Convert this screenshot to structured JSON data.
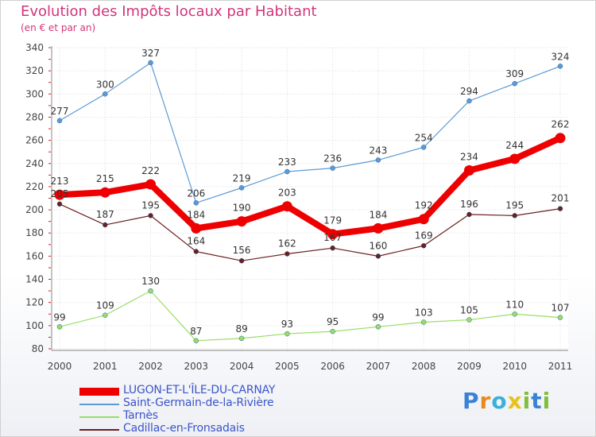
{
  "header": {
    "title": "Evolution des Impôts locaux par Habitant",
    "subtitle": "(en € et par an)"
  },
  "brand": {
    "letters": [
      "P",
      "r",
      "o",
      "x",
      "i",
      "t",
      "i"
    ],
    "colors": [
      "#3b82d6",
      "#e88a1a",
      "#3bb0d9",
      "#e8c21a",
      "#7fbf3a",
      "#3b82d6",
      "#7fbf3a"
    ]
  },
  "chart_data": {
    "type": "line",
    "title": "Evolution des Impôts locaux par Habitant",
    "subtitle": "(en € et par an)",
    "xlabel": "",
    "ylabel": "",
    "x": [
      "2000",
      "2001",
      "2002",
      "2003",
      "2004",
      "2005",
      "2006",
      "2007",
      "2008",
      "2009",
      "2010",
      "2011"
    ],
    "ylim": [
      80,
      340
    ],
    "yticks": [
      "80",
      "100",
      "120",
      "140",
      "160",
      "180",
      "200",
      "220",
      "240",
      "260",
      "280",
      "300",
      "320",
      "340"
    ],
    "grid": true,
    "legend_position": "bottom-left",
    "series": [
      {
        "name": "LUGON-ET-L'ÎLE-DU-CARNAY",
        "color": "#ee0000",
        "values": [
          213,
          215,
          222,
          184,
          190,
          203,
          179,
          184,
          192,
          234,
          244,
          262
        ],
        "labels": [
          "213",
          "215",
          "222",
          "184",
          "190",
          "203",
          "179",
          "184",
          "192",
          "234",
          "244",
          "262"
        ]
      },
      {
        "name": "Saint-Germain-de-la-Rivière",
        "color": "#5b9bd5",
        "values": [
          277,
          300,
          327,
          206,
          219,
          233,
          236,
          243,
          254,
          294,
          309,
          324
        ],
        "labels": [
          "277",
          "300",
          "327",
          "206",
          "219",
          "233",
          "236",
          "243",
          "254",
          "294",
          "309",
          "324"
        ]
      },
      {
        "name": "Tarnès",
        "color": "#99dd66",
        "values": [
          99,
          109,
          130,
          87,
          89,
          93,
          95,
          99,
          103,
          105,
          110,
          107
        ],
        "labels": [
          "99",
          "109",
          "130",
          "87",
          "89",
          "93",
          "95",
          "99",
          "103",
          "105",
          "110",
          "107"
        ]
      },
      {
        "name": "Cadillac-en-Fronsadais",
        "color": "#6b1f1f",
        "values": [
          205,
          187,
          195,
          164,
          156,
          162,
          167,
          160,
          169,
          196,
          195,
          201
        ],
        "labels": [
          "205",
          "187",
          "195",
          "164",
          "156",
          "162",
          "167",
          "160",
          "169",
          "196",
          "195",
          "201"
        ]
      }
    ]
  }
}
